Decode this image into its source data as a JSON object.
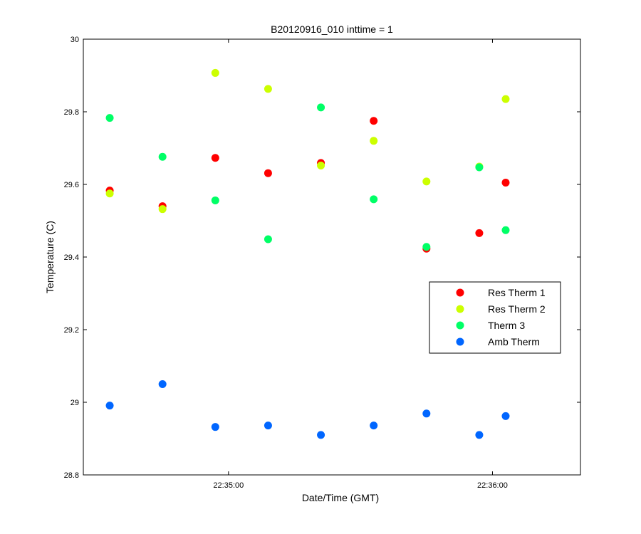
{
  "chart_data": {
    "type": "scatter",
    "title": "B20120916_010 inttime = 1",
    "xlabel": "Date/Time (GMT)",
    "ylabel": "Temperature (C)",
    "x_axis_kind": "time",
    "xlim": [
      "22:34:27",
      "22:36:20"
    ],
    "ylim": [
      28.8,
      30
    ],
    "x_ticks": [
      "22:35:00",
      "22:36:00"
    ],
    "y_ticks": [
      "28.8",
      "29",
      "29.2",
      "29.4",
      "29.6",
      "29.8",
      "30"
    ],
    "grid": false,
    "legend_position": "right",
    "x": [
      "22:34:33",
      "22:34:45",
      "22:34:57",
      "22:35:09",
      "22:35:21",
      "22:35:33",
      "22:35:45",
      "22:35:57",
      "22:36:03"
    ],
    "series": [
      {
        "name": "Res Therm 1",
        "color": "#ff0000",
        "x_index": [
          0,
          1,
          2,
          3,
          4,
          5,
          6,
          7,
          8
        ],
        "values": [
          29.583,
          29.54,
          29.673,
          29.631,
          29.659,
          29.775,
          29.423,
          29.466,
          29.605
        ]
      },
      {
        "name": "Res Therm 2",
        "color": "#ccff00",
        "x_index": [
          0,
          1,
          2,
          3,
          4,
          5,
          6,
          7,
          8
        ],
        "values": [
          29.575,
          29.532,
          29.907,
          29.863,
          29.652,
          29.72,
          29.608,
          29.649,
          29.835
        ]
      },
      {
        "name": "Therm 3",
        "color": "#00ff66",
        "x_index": [
          0,
          1,
          2,
          4,
          5,
          6,
          7,
          8
        ],
        "values": [
          29.783,
          29.676,
          29.556,
          29.812,
          29.559,
          29.428,
          29.647,
          29.474
        ]
      },
      {
        "name": "Therm 3",
        "color": "#00ff66",
        "x_index": [
          3
        ],
        "values": [
          29.449
        ],
        "legend": false
      },
      {
        "name": "Amb Therm",
        "color": "#0066ff",
        "x_index": [
          0,
          1,
          2,
          3,
          4,
          5,
          6,
          7,
          8
        ],
        "values": [
          28.991,
          29.05,
          28.932,
          28.936,
          28.91,
          28.936,
          28.969,
          28.91,
          28.962
        ]
      }
    ]
  }
}
